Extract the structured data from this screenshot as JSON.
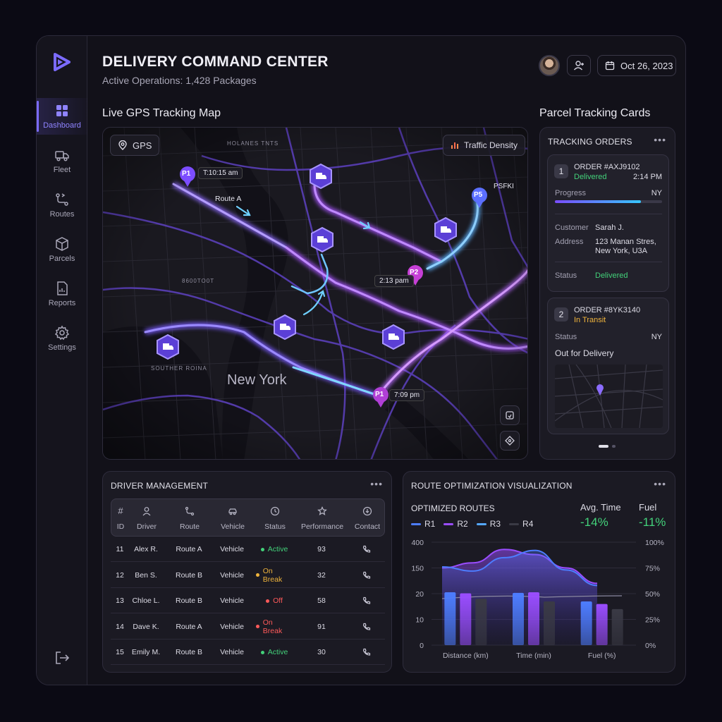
{
  "header": {
    "title": "DELIVERY COMMAND CENTER",
    "subtitle": "Active Operations: 1,428 Packages",
    "date": "Oct 26, 2023"
  },
  "sidebar": {
    "items": [
      {
        "label": "Dashboard",
        "icon": "dashboard-icon",
        "active": true
      },
      {
        "label": "Fleet",
        "icon": "truck-icon"
      },
      {
        "label": "Routes",
        "icon": "route-icon"
      },
      {
        "label": "Parcels",
        "icon": "box-icon"
      },
      {
        "label": "Reports",
        "icon": "report-icon"
      },
      {
        "label": "Settings",
        "icon": "gear-icon"
      }
    ]
  },
  "map": {
    "section_title": "Live GPS Tracking Map",
    "gps_label": "GPS",
    "traffic_label": "Traffic Density",
    "city_label": "New York",
    "route_label": "Route A",
    "pins": [
      {
        "label": "P1",
        "time": "T:10:15 am"
      },
      {
        "label": "P2",
        "time": "2:13 pam"
      },
      {
        "label": "P5",
        "time": "PSFKI"
      },
      {
        "label": "P1",
        "time": "7:09 pm"
      }
    ],
    "street_labels": [
      "HOLANES TNTS",
      "SOUTHER ROINA",
      "8600TO0T"
    ]
  },
  "tracking": {
    "section_title": "Parcel Tracking Cards",
    "panel_title": "TRACKING ORDERS",
    "orders": [
      {
        "num": "1",
        "order": "ORDER #AXJ9102",
        "state": "Delivered",
        "time": "2:14 PM",
        "progress_label": "Progress",
        "progress_region": "NY",
        "progress": 0.8,
        "customer_label": "Customer",
        "customer": "Sarah J.",
        "address_label": "Address",
        "address_line1": "123 Manan Stres,",
        "address_line2": "New York, U3A",
        "status_label": "Status",
        "status": "Delivered"
      },
      {
        "num": "2",
        "order": "ORDER #8YK3140",
        "state": "In Transit",
        "status_label": "Status",
        "status_region": "NY",
        "status": "Out for Delivery"
      }
    ],
    "pager_active": 0
  },
  "drivers": {
    "panel_title": "DRIVER MANAGEMENT",
    "columns": [
      "ID",
      "Driver",
      "Route",
      "Vehicle",
      "Status",
      "Performance",
      "Contact"
    ],
    "head_symbol": "#",
    "rows": [
      {
        "id": "11",
        "driver": "Alex R.",
        "route": "Route A",
        "vehicle": "Vehicle",
        "status": "Active",
        "status_kind": "ok",
        "performance": "93"
      },
      {
        "id": "12",
        "driver": "Ben S.",
        "route": "Route B",
        "vehicle": "Vehicle",
        "status": "On Break",
        "status_kind": "warn",
        "performance": "32"
      },
      {
        "id": "13",
        "driver": "Chloe L.",
        "route": "Route B",
        "vehicle": "Vehicle",
        "status": "Off",
        "status_kind": "err",
        "performance": "58"
      },
      {
        "id": "14",
        "driver": "Dave K.",
        "route": "Route A",
        "vehicle": "Vehicle",
        "status": "On Break",
        "status_kind": "err",
        "performance": "91"
      },
      {
        "id": "15",
        "driver": "Emily M.",
        "route": "Route B",
        "vehicle": "Vehicle",
        "status": "Active",
        "status_kind": "ok",
        "performance": "30"
      }
    ]
  },
  "route_opt": {
    "panel_title": "ROUTE OPTIMIZATION VISUALIZATION",
    "subtitle": "OPTIMIZED ROUTES",
    "kpis": [
      {
        "label": "Avg. Time",
        "value": "-14%"
      },
      {
        "label": "Fuel",
        "value": "-11%"
      }
    ]
  },
  "chart_data": {
    "type": "bar",
    "title": "",
    "categories": [
      "Distance (km)",
      "Time (min)",
      "Fuel (%)"
    ],
    "series": [
      {
        "name": "R1",
        "color": "#4d7dff",
        "values": [
          27,
          24,
          17
        ]
      },
      {
        "name": "R2",
        "color": "#9a4dff",
        "values": [
          22,
          27,
          16
        ]
      },
      {
        "name": "R3",
        "color": "#55a8ff",
        "values": [
          null,
          null,
          null
        ]
      },
      {
        "name": "R4",
        "color": "#3a3a45",
        "values": [
          18,
          17,
          14
        ]
      }
    ],
    "left_axis_ticks": [
      "400",
      "150",
      "20",
      "10",
      "0"
    ],
    "right_axis_ticks": [
      "100%",
      "75%",
      "50%",
      "25%",
      "0%"
    ],
    "ylim": [
      0,
      400
    ],
    "overlay_areas": [
      {
        "name": "R2",
        "color": "#9a4dff",
        "pct": [
          75,
          80,
          93,
          88,
          75,
          60
        ]
      },
      {
        "name": "R1",
        "color": "#4d7dff",
        "pct": [
          76,
          72,
          85,
          92,
          73,
          58
        ]
      }
    ]
  }
}
